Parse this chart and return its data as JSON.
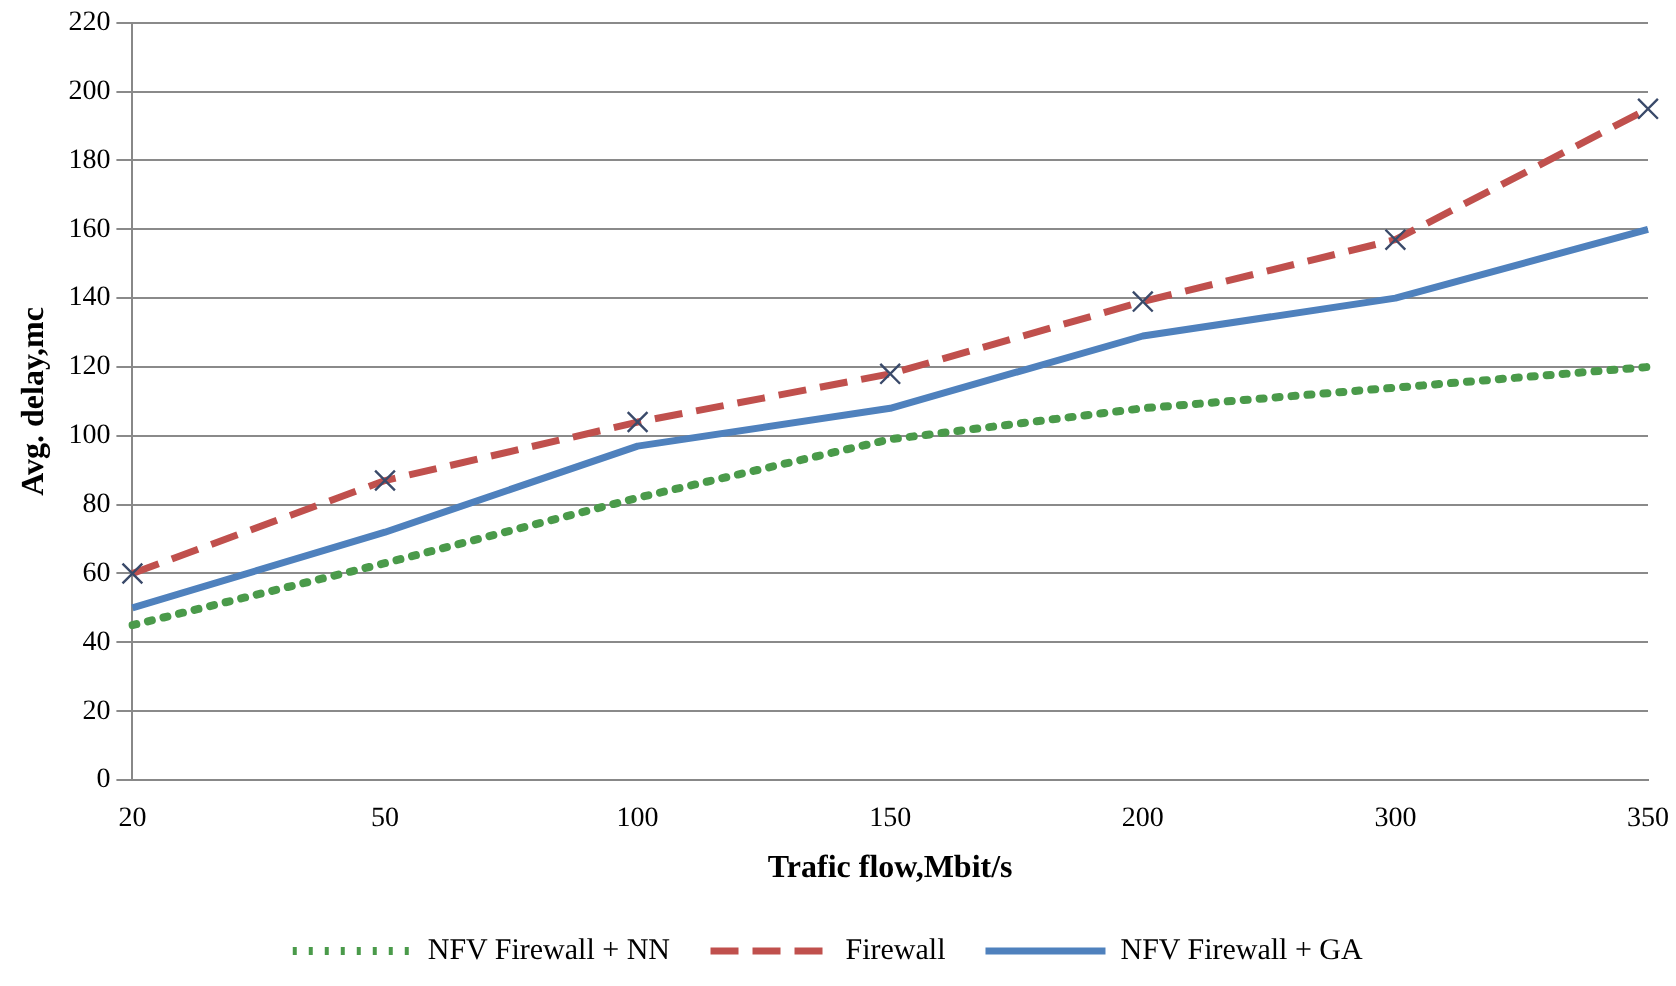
{
  "chart_data": {
    "type": "line",
    "xlabel": "Trafic flow,Mbit/s",
    "ylabel": "Avg. delay,mc",
    "categories": [
      "20",
      "50",
      "100",
      "150",
      "200",
      "300",
      "350"
    ],
    "ylim": [
      0,
      220
    ],
    "yticks": [
      0,
      20,
      40,
      60,
      80,
      100,
      120,
      140,
      160,
      180,
      200,
      220
    ],
    "grid": "y",
    "legend": "bottom",
    "series": [
      {
        "name": "NFV Firewall + NN",
        "color": "#4a9a4a",
        "line_style": "dotted",
        "marker": "none",
        "values": [
          45,
          63,
          82,
          99,
          108,
          114,
          120
        ]
      },
      {
        "name": "Firewall",
        "color": "#c0504d",
        "line_style": "dashed",
        "marker": "cross",
        "values": [
          60,
          87,
          104,
          118,
          139,
          157,
          195
        ]
      },
      {
        "name": "NFV Firewall + GA",
        "color": "#4f81bd",
        "line_style": "solid",
        "marker": "none",
        "values": [
          50,
          72,
          97,
          108,
          129,
          140,
          160
        ]
      }
    ]
  }
}
